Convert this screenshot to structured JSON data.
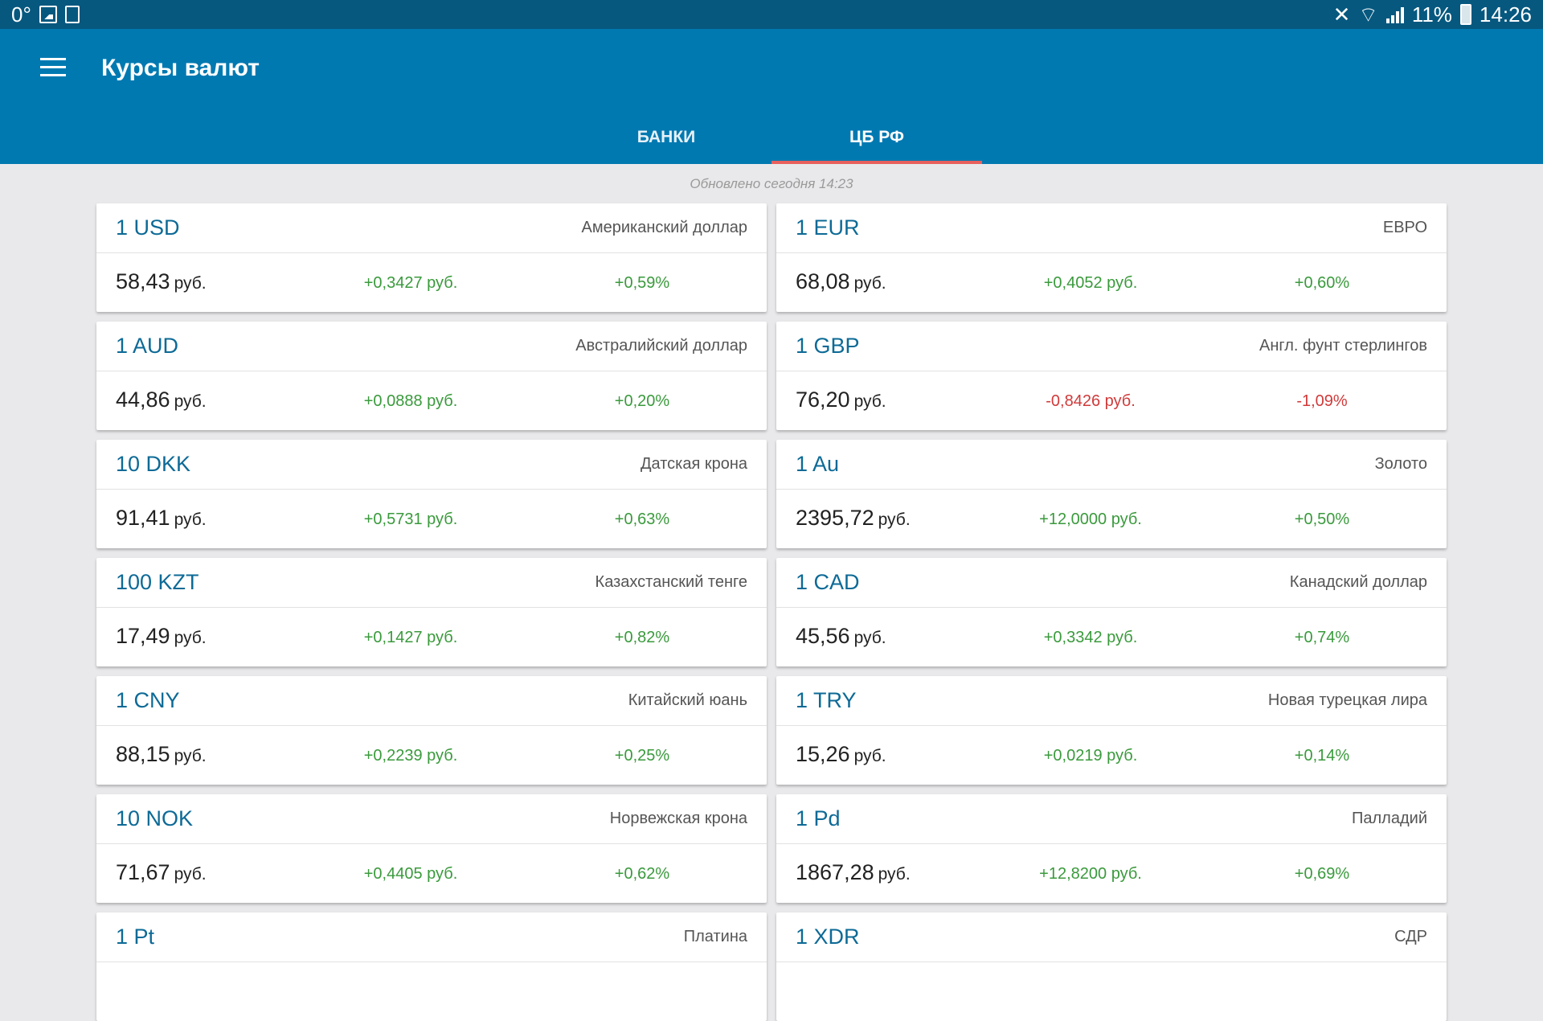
{
  "statusbar": {
    "temp": "0°",
    "battery": "11%",
    "time": "14:26"
  },
  "appbar": {
    "title": "Курсы валют",
    "tabs": [
      {
        "label": "БАНКИ",
        "active": false
      },
      {
        "label": "ЦБ РФ",
        "active": true
      }
    ]
  },
  "updated": "Обновлено сегодня 14:23",
  "unit": "руб.",
  "colors": {
    "accent": "#0079b1",
    "positive": "#3a9a3c",
    "negative": "#d03a3a",
    "indicator": "#e8605d"
  },
  "rates": [
    {
      "code": "1 USD",
      "name": "Американский доллар",
      "rate": "58,43",
      "change": "+0,3427 руб.",
      "percent": "+0,59%",
      "direction": "up"
    },
    {
      "code": "1 EUR",
      "name": "ЕВРО",
      "rate": "68,08",
      "change": "+0,4052 руб.",
      "percent": "+0,60%",
      "direction": "up"
    },
    {
      "code": "1 AUD",
      "name": "Австралийский доллар",
      "rate": "44,86",
      "change": "+0,0888 руб.",
      "percent": "+0,20%",
      "direction": "up"
    },
    {
      "code": "1 GBP",
      "name": "Англ. фунт стерлингов",
      "rate": "76,20",
      "change": "-0,8426 руб.",
      "percent": "-1,09%",
      "direction": "down"
    },
    {
      "code": "10 DKK",
      "name": "Датская крона",
      "rate": "91,41",
      "change": "+0,5731 руб.",
      "percent": "+0,63%",
      "direction": "up"
    },
    {
      "code": "1 Au",
      "name": "Золото",
      "rate": "2395,72",
      "change": "+12,0000 руб.",
      "percent": "+0,50%",
      "direction": "up"
    },
    {
      "code": "100 KZT",
      "name": "Казахстанский тенге",
      "rate": "17,49",
      "change": "+0,1427 руб.",
      "percent": "+0,82%",
      "direction": "up"
    },
    {
      "code": "1 CAD",
      "name": "Канадский доллар",
      "rate": "45,56",
      "change": "+0,3342 руб.",
      "percent": "+0,74%",
      "direction": "up"
    },
    {
      "code": "1 CNY",
      "name": "Китайский юань",
      "rate": "88,15",
      "change": "+0,2239 руб.",
      "percent": "+0,25%",
      "direction": "up"
    },
    {
      "code": "1 TRY",
      "name": "Новая турецкая лира",
      "rate": "15,26",
      "change": "+0,0219 руб.",
      "percent": "+0,14%",
      "direction": "up"
    },
    {
      "code": "10 NOK",
      "name": "Норвежская крона",
      "rate": "71,67",
      "change": "+0,4405 руб.",
      "percent": "+0,62%",
      "direction": "up"
    },
    {
      "code": "1 Pd",
      "name": "Палладий",
      "rate": "1867,28",
      "change": "+12,8200 руб.",
      "percent": "+0,69%",
      "direction": "up"
    },
    {
      "code": "1 Pt",
      "name": "Платина",
      "rate": "",
      "change": "",
      "percent": "",
      "direction": "up"
    },
    {
      "code": "1 XDR",
      "name": "СДР",
      "rate": "",
      "change": "",
      "percent": "",
      "direction": "up"
    }
  ]
}
